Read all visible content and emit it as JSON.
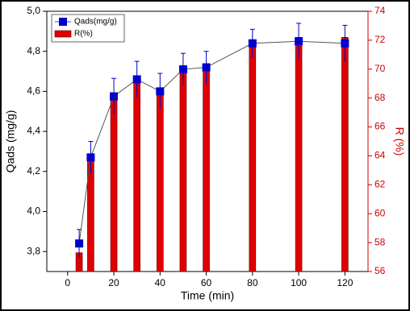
{
  "chart_data": {
    "type": "combo",
    "x_label": "Time (min)",
    "y_label": "Qads (mg/g)",
    "y2_label": "R (%)",
    "x": [
      5,
      10,
      20,
      30,
      40,
      50,
      60,
      80,
      100,
      120
    ],
    "series": [
      {
        "name": "Qads(mg/g)",
        "type": "line",
        "color": "#0000cc",
        "values": [
          3.84,
          4.27,
          4.575,
          4.66,
          4.6,
          4.71,
          4.72,
          4.84,
          4.85,
          4.84
        ],
        "errors": [
          0.07,
          0.08,
          0.09,
          0.09,
          0.09,
          0.08,
          0.08,
          0.07,
          0.09,
          0.09
        ]
      },
      {
        "name": "R(%)",
        "type": "bar",
        "axis": "y2",
        "color": "#e00000",
        "values": [
          57.3,
          63.9,
          68.3,
          69.4,
          68.6,
          70.1,
          70.2,
          71.9,
          72.2,
          72.2
        ]
      }
    ],
    "xlim": [
      -9,
      130
    ],
    "xticks": [
      0,
      20,
      40,
      60,
      80,
      100,
      120
    ],
    "ylim": [
      3.7,
      5.0
    ],
    "yticks": [
      {
        "value": 3.8,
        "label": "3,8"
      },
      {
        "value": 4.0,
        "label": "4,0"
      },
      {
        "value": 4.2,
        "label": "4,2"
      },
      {
        "value": 4.4,
        "label": "4,4"
      },
      {
        "value": 4.6,
        "label": "4,6"
      },
      {
        "value": 4.8,
        "label": "4,8"
      },
      {
        "value": 5.0,
        "label": "5,0"
      }
    ],
    "y2lim": [
      56,
      74
    ],
    "y2ticks": [
      56,
      58,
      60,
      62,
      64,
      66,
      68,
      70,
      72,
      74
    ],
    "y2_color": "#cc0000",
    "legend": "top-left"
  }
}
